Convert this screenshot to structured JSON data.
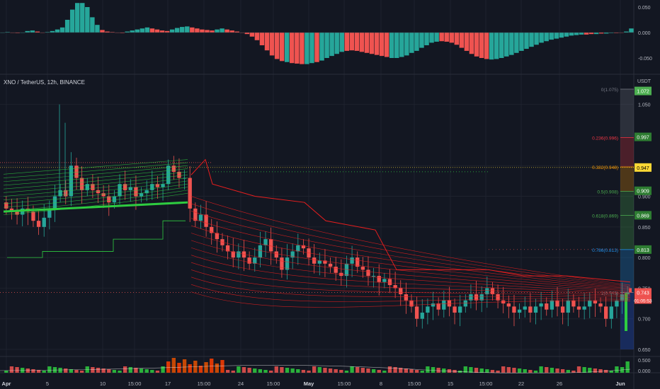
{
  "symbol_title": "XNO / TetherUS, 12h, BINANCE",
  "quote_currency": "USDT",
  "colors": {
    "background": "#131722",
    "up": "#26a69a",
    "down": "#ef5350",
    "green_bright": "#2ecc40",
    "red_ribbon": "#e81e1e",
    "grid": "#1e222d",
    "text": "#b2b5be"
  },
  "chart_data": [
    {
      "type": "histogram",
      "name": "oscillator",
      "ylim": [
        -0.07,
        0.065
      ],
      "y_ticks": [
        "0.050",
        "0.000",
        "-0.050"
      ],
      "values": [
        0.0,
        0.001,
        0.0,
        -0.001,
        0.0,
        0.003,
        0.004,
        0.002,
        0.0,
        0.001,
        0.003,
        0.006,
        0.01,
        0.025,
        0.045,
        0.058,
        0.058,
        0.05,
        0.03,
        0.015,
        0.005,
        0.002,
        0.001,
        0.0,
        -0.001,
        0.002,
        0.004,
        0.006,
        0.008,
        0.01,
        0.008,
        0.006,
        0.004,
        0.003,
        0.006,
        0.009,
        0.011,
        0.012,
        0.01,
        0.008,
        0.006,
        0.005,
        0.004,
        0.006,
        0.008,
        0.006,
        0.004,
        0.002,
        0.0,
        -0.003,
        -0.008,
        -0.015,
        -0.025,
        -0.035,
        -0.045,
        -0.052,
        -0.056,
        -0.058,
        -0.06,
        -0.061,
        -0.062,
        -0.062,
        -0.06,
        -0.058,
        -0.055,
        -0.05,
        -0.046,
        -0.042,
        -0.038,
        -0.036,
        -0.035,
        -0.036,
        -0.038,
        -0.04,
        -0.042,
        -0.044,
        -0.046,
        -0.048,
        -0.05,
        -0.05,
        -0.048,
        -0.045,
        -0.04,
        -0.036,
        -0.03,
        -0.025,
        -0.02,
        -0.018,
        -0.017,
        -0.018,
        -0.02,
        -0.024,
        -0.03,
        -0.036,
        -0.042,
        -0.047,
        -0.05,
        -0.052,
        -0.053,
        -0.052,
        -0.05,
        -0.047,
        -0.044,
        -0.04,
        -0.036,
        -0.032,
        -0.028,
        -0.024,
        -0.02,
        -0.017,
        -0.014,
        -0.012,
        -0.01,
        -0.008,
        -0.006,
        -0.005,
        -0.004,
        -0.004,
        -0.003,
        -0.003,
        -0.002,
        -0.002,
        -0.001,
        -0.001,
        0.0,
        0.002,
        0.008
      ],
      "colors_flag": [
        1,
        1,
        0,
        0,
        1,
        1,
        1,
        0,
        0,
        1,
        1,
        1,
        1,
        1,
        1,
        1,
        1,
        1,
        1,
        1,
        0,
        0,
        0,
        0,
        0,
        1,
        1,
        1,
        1,
        1,
        0,
        0,
        0,
        0,
        1,
        1,
        1,
        1,
        0,
        0,
        0,
        0,
        0,
        1,
        1,
        0,
        0,
        0,
        0,
        0,
        0,
        0,
        0,
        0,
        0,
        0,
        0,
        1,
        0,
        0,
        0,
        1,
        1,
        0,
        1,
        1,
        1,
        1,
        1,
        0,
        0,
        0,
        0,
        0,
        0,
        0,
        0,
        0,
        1,
        1,
        1,
        1,
        1,
        1,
        1,
        1,
        1,
        1,
        0,
        0,
        0,
        0,
        0,
        0,
        0,
        0,
        0,
        0,
        1,
        1,
        1,
        1,
        1,
        1,
        1,
        1,
        1,
        1,
        1,
        1,
        1,
        1,
        1,
        1,
        1,
        1,
        1,
        0,
        0,
        1,
        0,
        1,
        1,
        0,
        0,
        1,
        1
      ]
    },
    {
      "type": "candlestick",
      "name": "XNO / TetherUS 12h",
      "ylim": [
        0.63,
        1.08
      ],
      "y_ticks": [
        "1.050",
        "0.950",
        "0.900",
        "0.850",
        "0.800",
        "0.750",
        "0.700",
        "0.650"
      ],
      "x_ticks": [
        "Apr",
        "5",
        "10",
        "15:00",
        "17",
        "15:00",
        "24",
        "15:00",
        "May",
        "15:00",
        "8",
        "15:00",
        "15",
        "15:00",
        "22",
        "26",
        "Jun"
      ],
      "closes": [
        0.88,
        0.875,
        0.87,
        0.88,
        0.875,
        0.86,
        0.85,
        0.865,
        0.88,
        0.9,
        0.91,
        0.9,
        0.95,
        0.93,
        0.91,
        0.92,
        0.91,
        0.905,
        0.9,
        0.89,
        0.9,
        0.92,
        0.91,
        0.915,
        0.9,
        0.905,
        0.91,
        0.92,
        0.915,
        0.92,
        0.95,
        0.94,
        0.93,
        0.93,
        0.88,
        0.86,
        0.87,
        0.85,
        0.84,
        0.83,
        0.82,
        0.81,
        0.8,
        0.81,
        0.8,
        0.79,
        0.8,
        0.82,
        0.83,
        0.81,
        0.8,
        0.78,
        0.8,
        0.81,
        0.82,
        0.815,
        0.8,
        0.79,
        0.795,
        0.79,
        0.785,
        0.775,
        0.77,
        0.79,
        0.8,
        0.785,
        0.78,
        0.77,
        0.77,
        0.76,
        0.765,
        0.755,
        0.75,
        0.74,
        0.73,
        0.72,
        0.7,
        0.71,
        0.72,
        0.725,
        0.715,
        0.73,
        0.72,
        0.71,
        0.72,
        0.73,
        0.74,
        0.73,
        0.74,
        0.75,
        0.74,
        0.73,
        0.725,
        0.72,
        0.71,
        0.715,
        0.72,
        0.71,
        0.72,
        0.725,
        0.715,
        0.73,
        0.72,
        0.71,
        0.73,
        0.72,
        0.715,
        0.72,
        0.73,
        0.725,
        0.72,
        0.7,
        0.72,
        0.73,
        0.74,
        0.743
      ],
      "last_price": "0.743",
      "countdown": "01:05:53"
    },
    {
      "type": "fib_retracement",
      "levels": [
        {
          "label": "0(1.075)",
          "value": 1.075,
          "color": "#787b86"
        },
        {
          "label": "0.236(0.996)",
          "value": 0.996,
          "color": "#f23645"
        },
        {
          "label": "0.382(0.948)",
          "value": 0.948,
          "color": "#ff9800"
        },
        {
          "label": "0.5(0.908)",
          "value": 0.908,
          "color": "#4caf50"
        },
        {
          "label": "0.618(0.869)",
          "value": 0.869,
          "color": "#4caf50"
        },
        {
          "label": "0.786(0.813)",
          "value": 0.813,
          "color": "#2196f3"
        },
        {
          "label": "1(0.743)",
          "value": 0.743,
          "color": "#787b86"
        }
      ]
    },
    {
      "type": "bar",
      "name": "volume",
      "y_ticks": [
        "0.500",
        "0.000"
      ]
    }
  ],
  "price_axis_badges": [
    {
      "text": "1.072",
      "value": 1.072,
      "color": "#4caf50"
    },
    {
      "text": "0.997",
      "value": 0.997,
      "color": "#2e7d32"
    },
    {
      "text": "0.947",
      "value": 0.947,
      "color": "#fdd835"
    },
    {
      "text": "0.909",
      "value": 0.909,
      "color": "#2e7d32"
    },
    {
      "text": "0.869",
      "value": 0.869,
      "color": "#2e7d32"
    },
    {
      "text": "0.813",
      "value": 0.813,
      "color": "#2e7d32"
    },
    {
      "text": "0.743",
      "value": 0.743,
      "color": "#ef5350"
    }
  ]
}
